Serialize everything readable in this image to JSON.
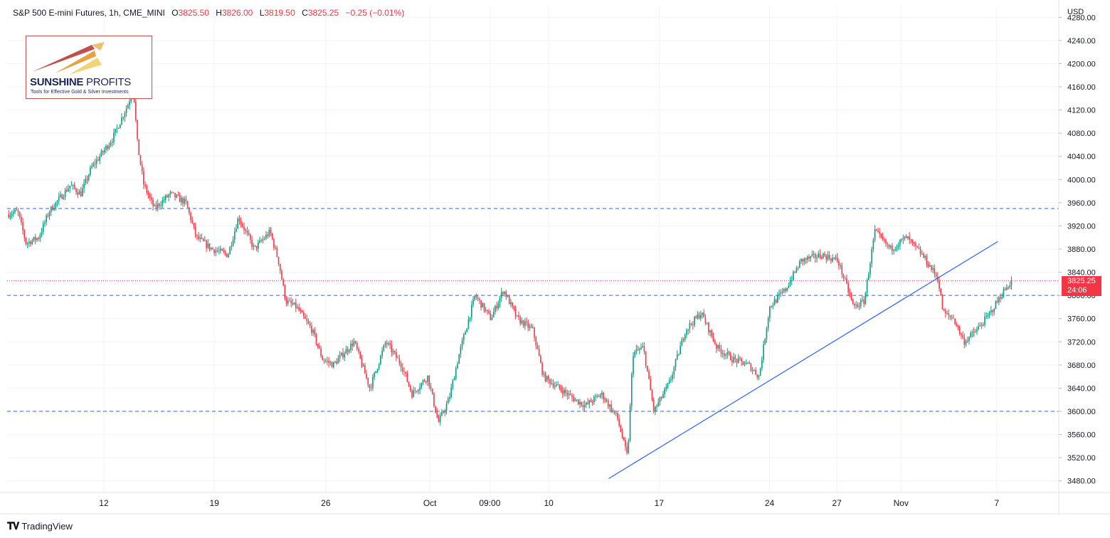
{
  "header": {
    "symbol": "S&P 500 E-mini Futures, 1h, CME_MINI",
    "open_label": "O",
    "open": "3825.50",
    "high_label": "H",
    "high": "3826.00",
    "low_label": "L",
    "low": "3819.50",
    "close_label": "C",
    "close": "3825.25",
    "change": "−0.25 (−0.01%)"
  },
  "logo": {
    "brand_bold": "SUNSHINE",
    "brand_thin": " PROFITS",
    "tagline": "Tools for Effective Gold & Silver Investments"
  },
  "footer": {
    "brand": "TradingView"
  },
  "colors": {
    "up": "#089981",
    "down": "#f23645",
    "level": "#2962ff",
    "trend": "#2962ff",
    "grid": "#f0f3fa"
  },
  "chart_data": {
    "type": "candlestick",
    "currency": "USD",
    "ylim": [
      3460,
      4300
    ],
    "y_ticks": [
      "4280.00",
      "4240.00",
      "4200.00",
      "4160.00",
      "4120.00",
      "4080.00",
      "4040.00",
      "4000.00",
      "3960.00",
      "3920.00",
      "3880.00",
      "3840.00",
      "3800.00",
      "3760.00",
      "3720.00",
      "3680.00",
      "3640.00",
      "3600.00",
      "3560.00",
      "3520.00",
      "3480.00"
    ],
    "x_ticks": [
      {
        "label": "12",
        "t": 0.092
      },
      {
        "label": "19",
        "t": 0.197
      },
      {
        "label": "26",
        "t": 0.303
      },
      {
        "label": "Oct",
        "t": 0.402
      },
      {
        "label": "09:00",
        "t": 0.459
      },
      {
        "label": "10",
        "t": 0.515
      },
      {
        "label": "17",
        "t": 0.62
      },
      {
        "label": "24",
        "t": 0.725
      },
      {
        "label": "27",
        "t": 0.789
      },
      {
        "label": "Nov",
        "t": 0.85
      },
      {
        "label": "7",
        "t": 0.941
      }
    ],
    "path": [
      [
        0.0,
        3940
      ],
      [
        0.01,
        3945
      ],
      [
        0.018,
        3890
      ],
      [
        0.03,
        3900
      ],
      [
        0.04,
        3945
      ],
      [
        0.06,
        3990
      ],
      [
        0.07,
        3975
      ],
      [
        0.08,
        4020
      ],
      [
        0.1,
        4070
      ],
      [
        0.115,
        4130
      ],
      [
        0.12,
        4160
      ],
      [
        0.124,
        4060
      ],
      [
        0.13,
        3990
      ],
      [
        0.14,
        3950
      ],
      [
        0.155,
        3975
      ],
      [
        0.17,
        3960
      ],
      [
        0.18,
        3900
      ],
      [
        0.195,
        3880
      ],
      [
        0.21,
        3870
      ],
      [
        0.22,
        3935
      ],
      [
        0.235,
        3880
      ],
      [
        0.25,
        3910
      ],
      [
        0.258,
        3860
      ],
      [
        0.265,
        3790
      ],
      [
        0.275,
        3780
      ],
      [
        0.29,
        3740
      ],
      [
        0.3,
        3690
      ],
      [
        0.31,
        3680
      ],
      [
        0.33,
        3720
      ],
      [
        0.345,
        3640
      ],
      [
        0.36,
        3720
      ],
      [
        0.375,
        3680
      ],
      [
        0.385,
        3630
      ],
      [
        0.4,
        3660
      ],
      [
        0.41,
        3580
      ],
      [
        0.42,
        3620
      ],
      [
        0.43,
        3700
      ],
      [
        0.445,
        3800
      ],
      [
        0.46,
        3760
      ],
      [
        0.472,
        3810
      ],
      [
        0.485,
        3760
      ],
      [
        0.5,
        3740
      ],
      [
        0.51,
        3660
      ],
      [
        0.525,
        3640
      ],
      [
        0.54,
        3620
      ],
      [
        0.55,
        3610
      ],
      [
        0.565,
        3630
      ],
      [
        0.58,
        3590
      ],
      [
        0.59,
        3520
      ],
      [
        0.595,
        3700
      ],
      [
        0.605,
        3710
      ],
      [
        0.615,
        3600
      ],
      [
        0.63,
        3650
      ],
      [
        0.645,
        3740
      ],
      [
        0.66,
        3770
      ],
      [
        0.675,
        3710
      ],
      [
        0.69,
        3690
      ],
      [
        0.705,
        3680
      ],
      [
        0.715,
        3660
      ],
      [
        0.725,
        3780
      ],
      [
        0.74,
        3810
      ],
      [
        0.755,
        3860
      ],
      [
        0.775,
        3870
      ],
      [
        0.79,
        3860
      ],
      [
        0.805,
        3780
      ],
      [
        0.815,
        3790
      ],
      [
        0.825,
        3910
      ],
      [
        0.84,
        3880
      ],
      [
        0.855,
        3900
      ],
      [
        0.87,
        3870
      ],
      [
        0.885,
        3830
      ],
      [
        0.89,
        3770
      ],
      [
        0.9,
        3760
      ],
      [
        0.91,
        3720
      ],
      [
        0.922,
        3740
      ],
      [
        0.935,
        3770
      ],
      [
        0.945,
        3800
      ],
      [
        0.955,
        3825
      ]
    ],
    "levels": [
      3950,
      3800,
      3600
    ],
    "last_price": {
      "value": 3825.25,
      "label": "3825.25",
      "countdown": "24:06"
    },
    "trendline": {
      "from": {
        "t": 0.572,
        "y": 3484
      },
      "to": {
        "t": 0.942,
        "y": 3893
      }
    }
  }
}
